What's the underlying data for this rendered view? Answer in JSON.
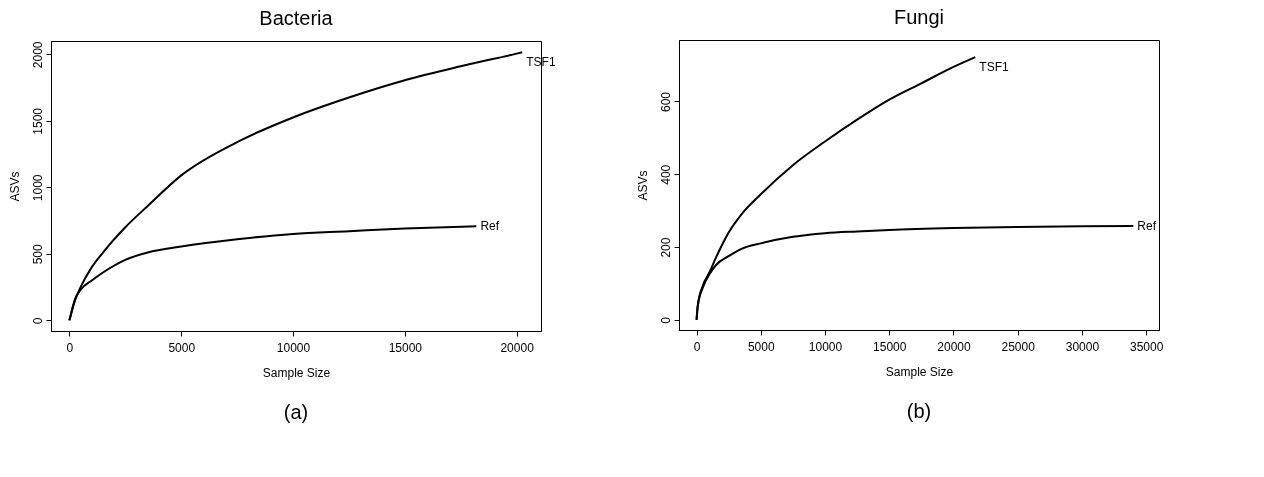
{
  "chart_data": [
    {
      "type": "line",
      "title": "Bacteria",
      "xlabel": "Sample Size",
      "ylabel": "ASVs",
      "xlim": [
        -825,
        21090
      ],
      "xticks": [
        0,
        5000,
        10000,
        15000,
        20000
      ],
      "ylim": [
        -80,
        2100
      ],
      "yticks": [
        0,
        500,
        1000,
        1500,
        2000
      ],
      "annotations": [
        "(a)"
      ],
      "series": [
        {
          "name": "TSF1",
          "color": "#000000",
          "x": [
            0,
            250,
            500,
            1000,
            1500,
            2500,
            3500,
            5000,
            7500,
            10000,
            12500,
            15000,
            17500,
            20000,
            20250
          ],
          "values": [
            0,
            150,
            250,
            400,
            510,
            700,
            860,
            1090,
            1340,
            1525,
            1675,
            1805,
            1910,
            2005,
            2015
          ]
        },
        {
          "name": "Ref",
          "color": "#000000",
          "x": [
            0,
            250,
            500,
            1000,
            1500,
            2500,
            3500,
            5000,
            7500,
            10000,
            12500,
            15000,
            18200
          ],
          "values": [
            0,
            160,
            230,
            300,
            360,
            455,
            510,
            555,
            610,
            650,
            670,
            690,
            708
          ]
        }
      ]
    },
    {
      "type": "line",
      "title": "Fungi",
      "xlabel": "Sample Size",
      "ylabel": "ASVs",
      "xlim": [
        -1366,
        36000
      ],
      "xticks": [
        0,
        5000,
        10000,
        15000,
        20000,
        25000,
        30000,
        35000
      ],
      "ylim": [
        -28,
        769
      ],
      "yticks": [
        0,
        200,
        400,
        600
      ],
      "annotations": [
        "(b)"
      ],
      "series": [
        {
          "name": "TSF1",
          "color": "#000000",
          "x": [
            0,
            100,
            500,
            1000,
            1500,
            2500,
            3500,
            5000,
            7500,
            10000,
            12500,
            15000,
            17500,
            20000,
            21700
          ],
          "values": [
            0,
            40,
            95,
            130,
            170,
            240,
            290,
            345,
            425,
            490,
            550,
            605,
            650,
            695,
            722
          ]
        },
        {
          "name": "Ref",
          "color": "#000000",
          "x": [
            0,
            100,
            500,
            1000,
            1500,
            2500,
            3500,
            5000,
            7500,
            10000,
            12500,
            15000,
            20000,
            25000,
            30000,
            34000
          ],
          "values": [
            0,
            40,
            90,
            125,
            150,
            175,
            195,
            210,
            228,
            238,
            243,
            247,
            252,
            255,
            257,
            258
          ]
        }
      ]
    }
  ]
}
